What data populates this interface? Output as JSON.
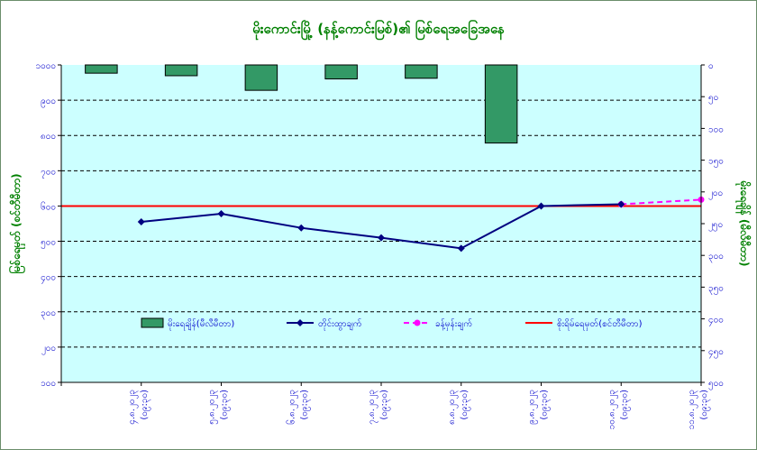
{
  "chart_data": {
    "type": "bar+line",
    "title": "မိုးကောင်းမြို့ (နန့်ကောင်းမြစ်)၏ မြစ်ရေအခြေအနေ",
    "left_axis_label": "မြစ်ရေမှတ် (စင်တီမီတာ)",
    "right_axis_label": "မိုးရေချိန် (မီလီမီတာ)",
    "left_ticks": [
      "၁၀၀၀",
      "၉၀၀",
      "၈၀၀",
      "၇၀၀",
      "၆၀၀",
      "၅၀၀",
      "၄၀၀",
      "၃၀၀",
      "၂၀၀",
      "၁၀၀"
    ],
    "right_ticks": [
      "၀",
      "၅၀",
      "၁၀၀",
      "၁၅၀",
      "၂၀၀",
      "၂၅၀",
      "၃၀၀",
      "၃၅၀",
      "၄၀၀",
      "၄၅၀",
      "၅၀၀"
    ],
    "categories": [
      {
        "date": "၄.၈.၂၀၂၃",
        "time": "(၀၉:၃၀)"
      },
      {
        "date": "၅.၈.၂၀၂၃",
        "time": "(၀၉:၃၀)"
      },
      {
        "date": "၆.၈.၂၀၂၃",
        "time": "(၀၉:၃၀)"
      },
      {
        "date": "၇.၈.၂၀၂၃",
        "time": "(၀၉:၃၀)"
      },
      {
        "date": "၈.၈.၂၀၂၃",
        "time": "(၀၉:၃၀)"
      },
      {
        "date": "၉.၈.၂၀၂၃",
        "time": "(၀၉:၃၀)"
      },
      {
        "date": "၁၀.၈.၂၀၂၃",
        "time": "(၀၉:၃၀)"
      },
      {
        "date": "၁၁.၈.၂၀၂၃",
        "time": "(၀၉:၃၀)"
      }
    ],
    "rainfall_mm": [
      13,
      17,
      40,
      22,
      21,
      123,
      null,
      null
    ],
    "observed_level_cm": [
      555,
      578,
      538,
      510,
      480,
      600,
      605,
      null
    ],
    "forecast_level_cm": [
      null,
      null,
      null,
      null,
      null,
      null,
      605,
      618
    ],
    "danger_level_cm": 600,
    "left_ylim": [
      100,
      1000
    ],
    "right_ylim": [
      0,
      500
    ],
    "legend": {
      "rain": "မိုးရေချိန်(မီလီမီတာ)",
      "observed": "တိုင်းထွာချက်",
      "forecast": "ခန့်မှန်းချက်",
      "danger": "စိုးရိမ်ရေမှတ်(စင်တီမီတာ)"
    },
    "colors": {
      "plot_bg": "#ccffff",
      "bar": "#339966",
      "observed": "#000080",
      "forecast": "#ff00ff",
      "danger": "#ff0000",
      "title": "#008000",
      "axis_text": "#0000cc",
      "grid": "#000000"
    },
    "grid": true,
    "legend_position": "inside-bottom"
  }
}
